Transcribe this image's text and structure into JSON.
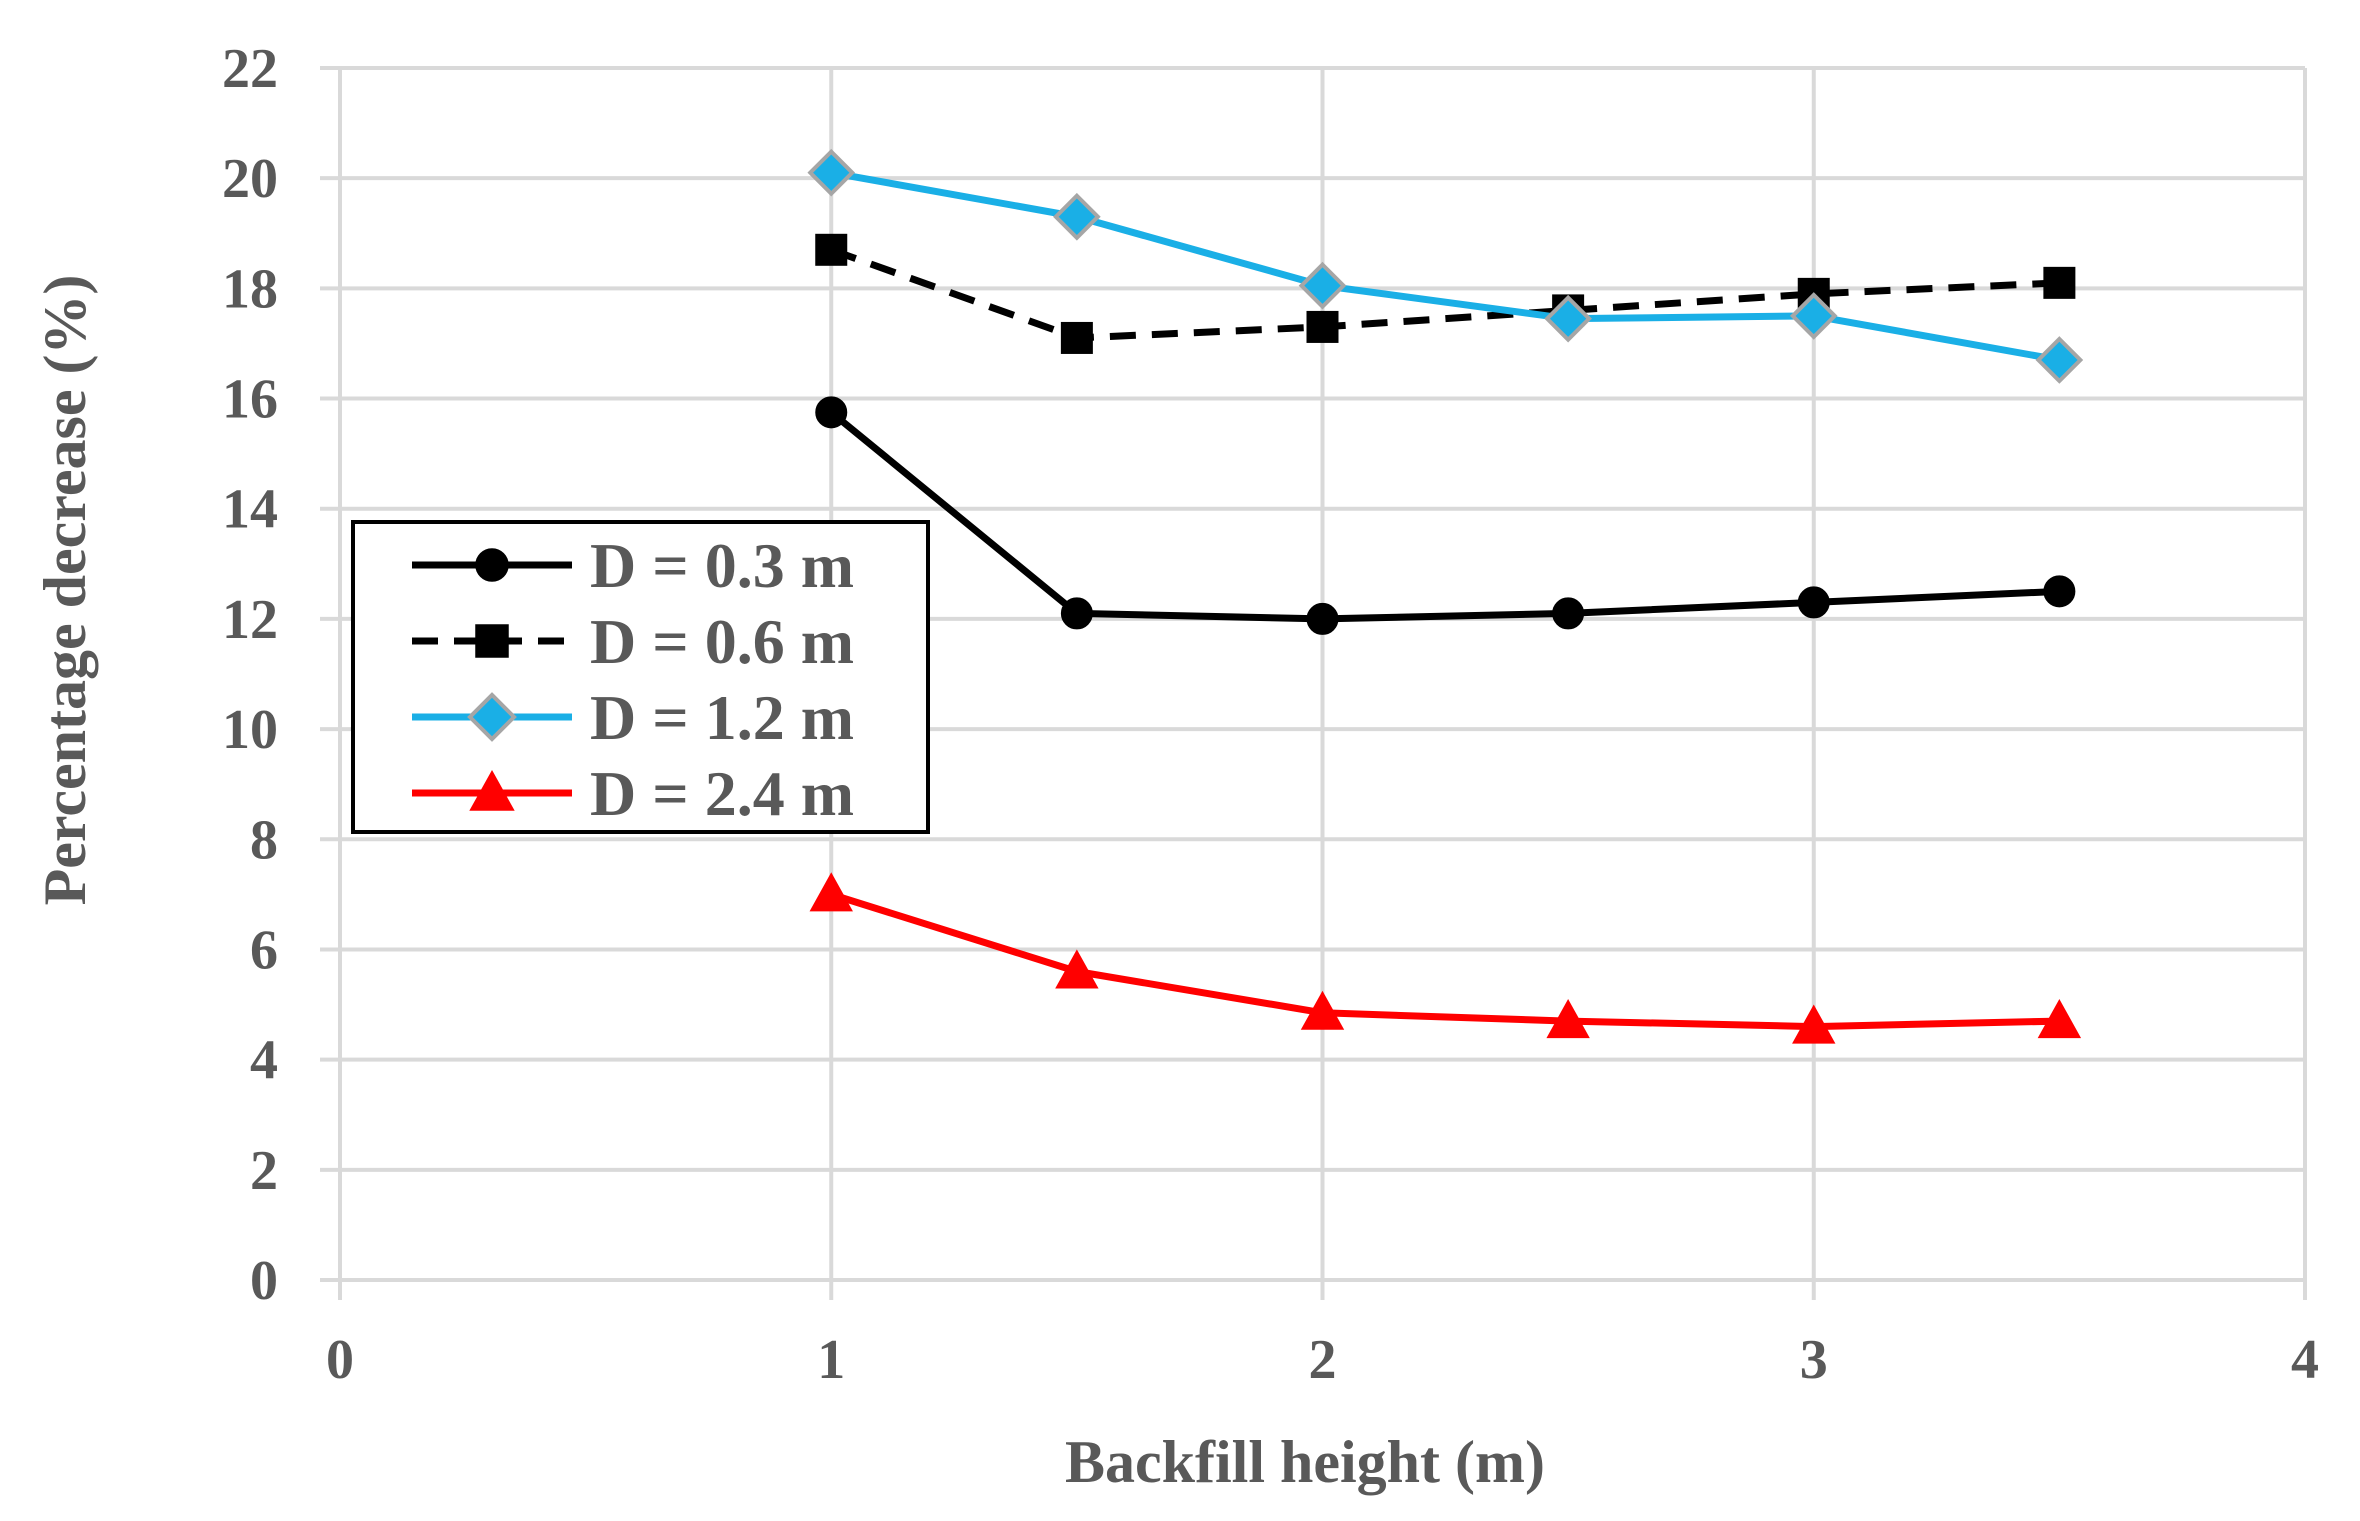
{
  "chart_data": {
    "type": "line",
    "title": "",
    "xlabel": "Backfill height (m)",
    "ylabel": "Percentage decrease (%)",
    "xlim": [
      0,
      4
    ],
    "ylim": [
      0,
      22
    ],
    "xticks": [
      "0",
      "1",
      "2",
      "3",
      "4"
    ],
    "yticks": [
      "0",
      "2",
      "4",
      "6",
      "8",
      "10",
      "12",
      "14",
      "16",
      "18",
      "20",
      "22"
    ],
    "grid": true,
    "legend_position": "center-left",
    "x": [
      1,
      1.5,
      2,
      2.5,
      3,
      3.5
    ],
    "series": [
      {
        "name": "D = 0.3 m",
        "values": [
          15.75,
          12.1,
          12.0,
          12.1,
          12.3,
          12.5
        ],
        "color": "#000000",
        "marker": "circle",
        "line_style": "solid"
      },
      {
        "name": "D = 0.6 m",
        "values": [
          18.7,
          17.1,
          17.3,
          17.6,
          17.9,
          18.1
        ],
        "color": "#000000",
        "marker": "square",
        "line_style": "dashed"
      },
      {
        "name": "D = 1.2 m",
        "values": [
          20.1,
          19.3,
          18.05,
          17.45,
          17.5,
          16.7
        ],
        "color": "#1AAFE6",
        "marker": "diamond",
        "line_style": "solid"
      },
      {
        "name": "D = 2.4 m",
        "values": [
          7.0,
          5.6,
          4.85,
          4.7,
          4.6,
          4.7
        ],
        "color": "#FF0000",
        "marker": "triangle",
        "line_style": "solid"
      }
    ]
  }
}
